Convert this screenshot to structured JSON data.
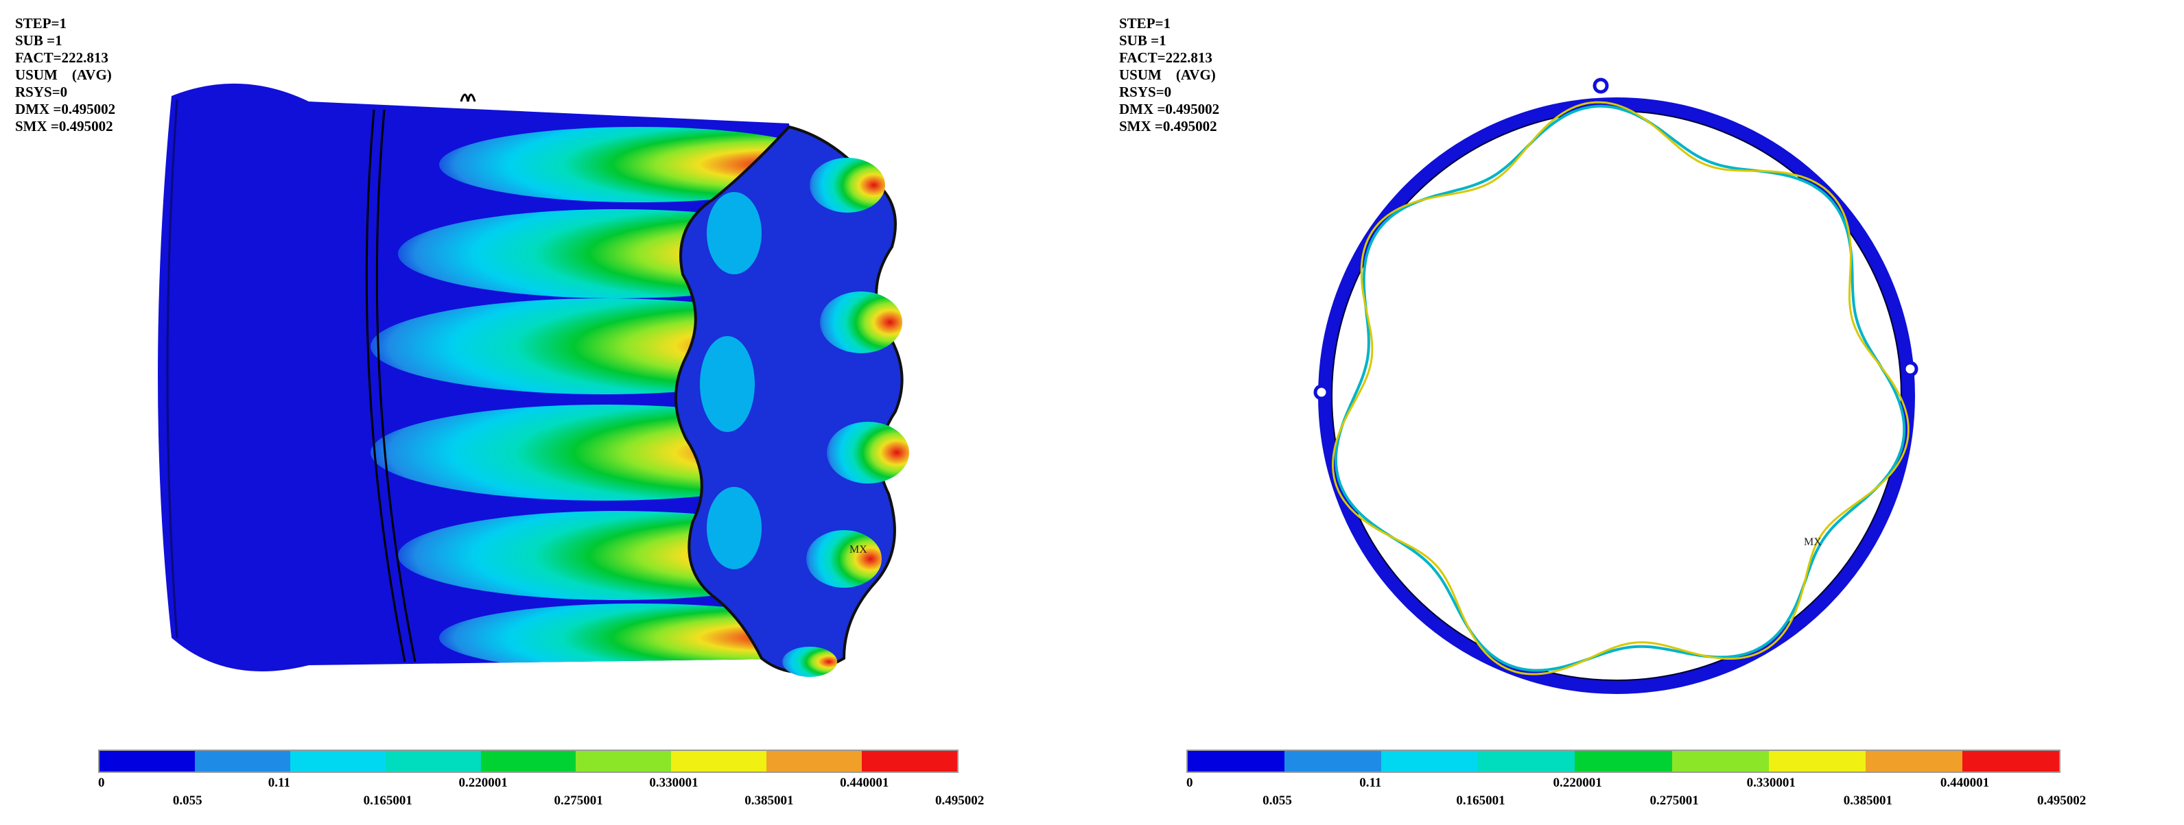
{
  "panels": [
    {
      "name": "isometric-view",
      "info": [
        "STEP=1",
        "SUB =1",
        "FACT=222.813",
        "USUM    (AVG)",
        "RSYS=0",
        "DMX =0.495002",
        "SMX =0.495002"
      ],
      "node_label": "MX"
    },
    {
      "name": "cross-section-view",
      "info": [
        "STEP=1",
        "SUB =1",
        "FACT=222.813",
        "USUM    (AVG)",
        "RSYS=0",
        "DMX =0.495002",
        "SMX =0.495002"
      ],
      "node_label": "MX"
    }
  ],
  "legend": {
    "colors": [
      "#0000e0",
      "#1e8ce6",
      "#00d7f0",
      "#00dcbe",
      "#00d234",
      "#8ce628",
      "#f0f012",
      "#f0a028",
      "#f01414"
    ],
    "labels": [
      "0",
      "0.055",
      "0.11",
      "0.165001",
      "0.220001",
      "0.275001",
      "0.330001",
      "0.385001",
      "0.440001",
      "0.495002"
    ]
  }
}
